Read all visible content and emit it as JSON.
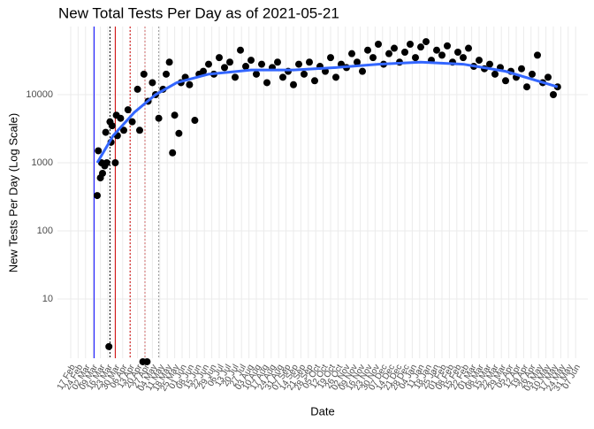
{
  "chart_data": {
    "type": "scatter",
    "title": "New Total Tests Per Day as of 2021-05-21",
    "xlabel": "Date",
    "ylabel": "New Tests Per Day (Log Scale)",
    "log_y": true,
    "grid": true,
    "xlim": [
      -12.5,
      487.5
    ],
    "ylim": [
      1.35,
      100000
    ],
    "yticks": [
      10,
      100,
      1000,
      10000
    ],
    "xticks": [
      {
        "value": 0,
        "label": "17 Feb"
      },
      {
        "value": 7,
        "label": "24 Feb"
      },
      {
        "value": 14,
        "label": "02 Mar"
      },
      {
        "value": 21,
        "label": "09 Mar"
      },
      {
        "value": 28,
        "label": "16 Mar"
      },
      {
        "value": 35,
        "label": "23 Mar"
      },
      {
        "value": 42,
        "label": "30 Mar"
      },
      {
        "value": 49,
        "label": "06 Apr"
      },
      {
        "value": 56,
        "label": "13 Apr"
      },
      {
        "value": 63,
        "label": "20 Apr"
      },
      {
        "value": 70,
        "label": "27 Apr"
      },
      {
        "value": 77,
        "label": "04 May"
      },
      {
        "value": 84,
        "label": "11 May"
      },
      {
        "value": 91,
        "label": "18 May"
      },
      {
        "value": 98,
        "label": "25 May"
      },
      {
        "value": 105,
        "label": "01 Jun"
      },
      {
        "value": 112,
        "label": "08 Jun"
      },
      {
        "value": 119,
        "label": "15 Jun"
      },
      {
        "value": 126,
        "label": "22 Jun"
      },
      {
        "value": 133,
        "label": "29 Jun"
      },
      {
        "value": 140,
        "label": "06 Jul"
      },
      {
        "value": 147,
        "label": "13 Jul"
      },
      {
        "value": 154,
        "label": "20 Jul"
      },
      {
        "value": 161,
        "label": "27 Jul"
      },
      {
        "value": 168,
        "label": "03 Aug"
      },
      {
        "value": 175,
        "label": "10 Aug"
      },
      {
        "value": 182,
        "label": "17 Aug"
      },
      {
        "value": 189,
        "label": "24 Aug"
      },
      {
        "value": 196,
        "label": "31 Aug"
      },
      {
        "value": 203,
        "label": "07 Sep"
      },
      {
        "value": 210,
        "label": "14 Sep"
      },
      {
        "value": 217,
        "label": "21 Sep"
      },
      {
        "value": 224,
        "label": "28 Sep"
      },
      {
        "value": 231,
        "label": "05 Oct"
      },
      {
        "value": 238,
        "label": "12 Oct"
      },
      {
        "value": 245,
        "label": "19 Oct"
      },
      {
        "value": 252,
        "label": "26 Oct"
      },
      {
        "value": 259,
        "label": "02 Nov"
      },
      {
        "value": 266,
        "label": "09 Nov"
      },
      {
        "value": 273,
        "label": "16 Nov"
      },
      {
        "value": 280,
        "label": "23 Nov"
      },
      {
        "value": 287,
        "label": "30 Nov"
      },
      {
        "value": 294,
        "label": "07 Dec"
      },
      {
        "value": 301,
        "label": "14 Dec"
      },
      {
        "value": 308,
        "label": "21 Dec"
      },
      {
        "value": 315,
        "label": "28 Dec"
      },
      {
        "value": 322,
        "label": "04 Jan"
      },
      {
        "value": 329,
        "label": "11 Jan"
      },
      {
        "value": 336,
        "label": "18 Jan"
      },
      {
        "value": 343,
        "label": "25 Jan"
      },
      {
        "value": 350,
        "label": "01 Feb"
      },
      {
        "value": 357,
        "label": "08 Feb"
      },
      {
        "value": 364,
        "label": "15 Feb"
      },
      {
        "value": 371,
        "label": "22 Feb"
      },
      {
        "value": 378,
        "label": "01 Mar"
      },
      {
        "value": 385,
        "label": "08 Mar"
      },
      {
        "value": 392,
        "label": "15 Mar"
      },
      {
        "value": 399,
        "label": "22 Mar"
      },
      {
        "value": 406,
        "label": "29 Mar"
      },
      {
        "value": 413,
        "label": "05 Apr"
      },
      {
        "value": 420,
        "label": "12 Apr"
      },
      {
        "value": 427,
        "label": "19 Apr"
      },
      {
        "value": 434,
        "label": "26 Apr"
      },
      {
        "value": 441,
        "label": "03 May"
      },
      {
        "value": 448,
        "label": "10 May"
      },
      {
        "value": 455,
        "label": "17 May"
      },
      {
        "value": 462,
        "label": "24 May"
      },
      {
        "value": 469,
        "label": "31 May"
      },
      {
        "value": 476,
        "label": "07 Jun"
      }
    ],
    "vlines": [
      {
        "x": 22,
        "color": "#0000ff",
        "dash": "none"
      },
      {
        "x": 37,
        "color": "#000000",
        "dash": "2,2"
      },
      {
        "x": 42,
        "color": "#cc0000",
        "dash": "none"
      },
      {
        "x": 56,
        "color": "#cc0000",
        "dash": "2,2"
      },
      {
        "x": 70,
        "color": "#cc6666",
        "dash": "2,2"
      },
      {
        "x": 83,
        "color": "#999999",
        "dash": "2,2"
      }
    ],
    "series": [
      {
        "kind": "points",
        "color": "#000000",
        "x": [
          25,
          26,
          28,
          29,
          30,
          32,
          33,
          34,
          36,
          37,
          38,
          39,
          42,
          43,
          44,
          47,
          50,
          54,
          58,
          63,
          65,
          68,
          69,
          72,
          73,
          77,
          80,
          83,
          87,
          90,
          93,
          96,
          98,
          102,
          104,
          108,
          112,
          117,
          121,
          125,
          130,
          135,
          140,
          145,
          150,
          155,
          160,
          165,
          170,
          175,
          180,
          185,
          190,
          195,
          200,
          205,
          210,
          215,
          220,
          225,
          230,
          235,
          240,
          245,
          250,
          255,
          260,
          265,
          270,
          275,
          280,
          285,
          290,
          295,
          300,
          305,
          310,
          315,
          320,
          325,
          330,
          335,
          340,
          345,
          350,
          355,
          360,
          365,
          370,
          375,
          380,
          385,
          390,
          395,
          400,
          405,
          410,
          415,
          420,
          425,
          430,
          435,
          440,
          445,
          450,
          455,
          459
        ],
        "values": [
          330,
          1500,
          600,
          1000,
          700,
          900,
          2800,
          1000,
          2,
          4000,
          2000,
          3500,
          1000,
          5000,
          2500,
          4500,
          3000,
          6000,
          4000,
          12000,
          3000,
          1.2,
          20000,
          1.2,
          8000,
          15000,
          10000,
          4500,
          12000,
          20000,
          30000,
          1400,
          5000,
          2700,
          15000,
          18000,
          14000,
          4200,
          20000,
          22000,
          28000,
          20000,
          35000,
          25000,
          30000,
          18000,
          45000,
          26000,
          32000,
          20000,
          28000,
          15000,
          25000,
          30000,
          18000,
          22000,
          14000,
          28000,
          20000,
          30000,
          16000,
          26000,
          22000,
          35000,
          18000,
          28000,
          25000,
          40000,
          30000,
          22000,
          45000,
          35000,
          55000,
          28000,
          40000,
          48000,
          30000,
          42000,
          55000,
          35000,
          50000,
          60000,
          32000,
          45000,
          38000,
          52000,
          30000,
          42000,
          35000,
          48000,
          26000,
          32000,
          24000,
          28000,
          20000,
          25000,
          16000,
          22000,
          18000,
          24000,
          13000,
          20000,
          38000,
          15000,
          18000,
          10000,
          13000
        ]
      },
      {
        "kind": "smooth",
        "color": "#3366ff",
        "x": [
          25,
          40,
          60,
          80,
          100,
          130,
          170,
          210,
          250,
          290,
          330,
          370,
          410,
          459
        ],
        "values": [
          1000,
          2500,
          5500,
          10000,
          15000,
          20000,
          23000,
          23000,
          25000,
          28000,
          30000,
          28000,
          22000,
          13000
        ]
      }
    ]
  }
}
